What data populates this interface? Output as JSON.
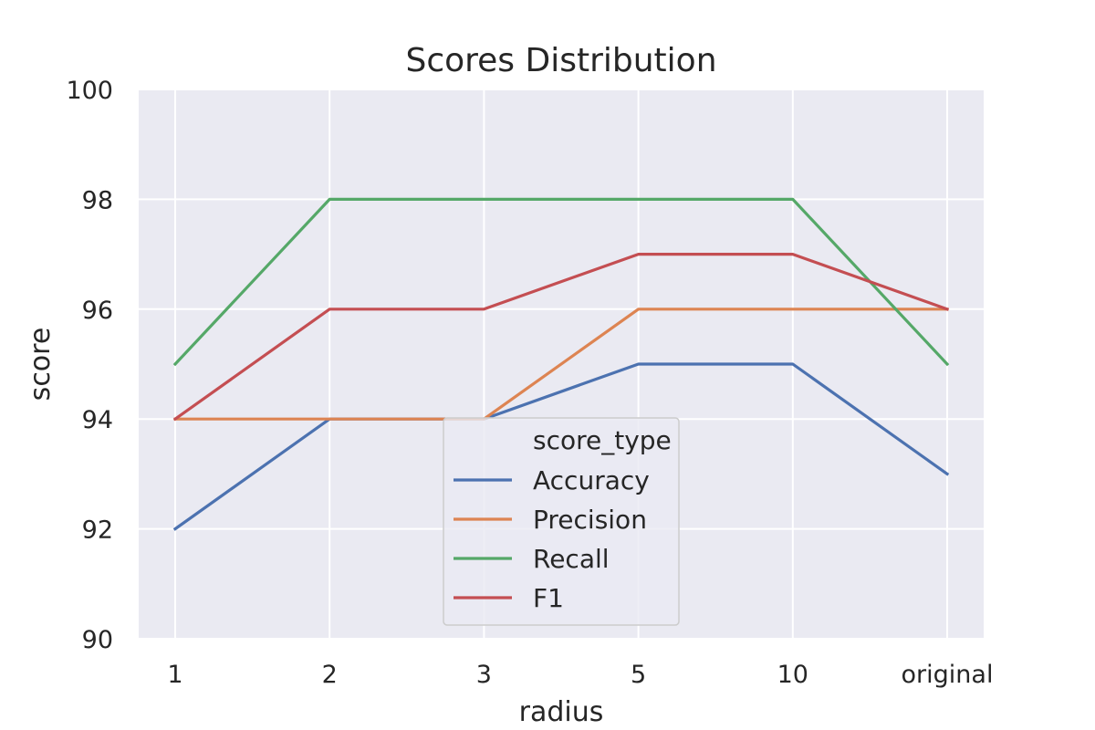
{
  "chart_data": {
    "type": "line",
    "title": "Scores Distribution",
    "xlabel": "radius",
    "ylabel": "score",
    "categories": [
      "1",
      "2",
      "3",
      "5",
      "10",
      "original"
    ],
    "ylim": [
      90,
      100
    ],
    "yticks": [
      90,
      92,
      94,
      96,
      98,
      100
    ],
    "grid": true,
    "legend": {
      "title": "score_type",
      "placement": "lower-center"
    },
    "series": [
      {
        "name": "Accuracy",
        "color": "#4c72b0",
        "values": [
          92,
          94,
          94,
          95,
          95,
          93
        ]
      },
      {
        "name": "Precision",
        "color": "#dd8452",
        "values": [
          94,
          94,
          94,
          96,
          96,
          96
        ]
      },
      {
        "name": "Recall",
        "color": "#55a868",
        "values": [
          95,
          98,
          98,
          98,
          98,
          95
        ]
      },
      {
        "name": "F1",
        "color": "#c44e52",
        "values": [
          94,
          96,
          96,
          97,
          97,
          96
        ]
      }
    ]
  }
}
